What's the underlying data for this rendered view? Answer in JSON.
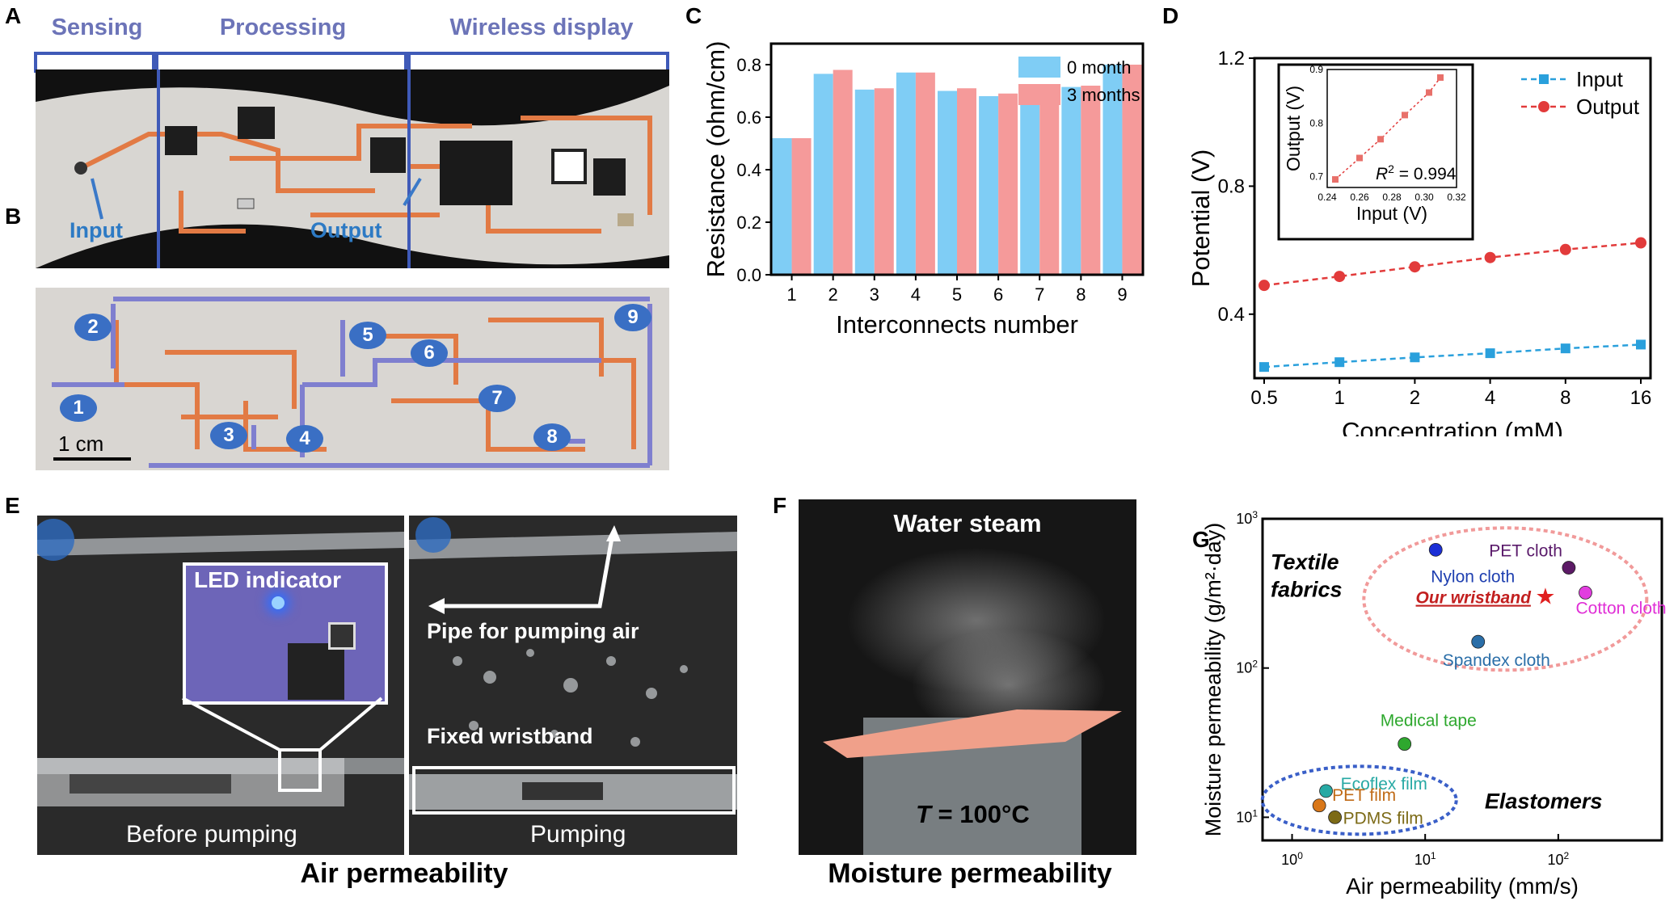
{
  "panels": {
    "A": "A",
    "B": "B",
    "C": "C",
    "D": "D",
    "E": "E",
    "F": "F",
    "G": "G"
  },
  "panelA": {
    "sections": [
      "Sensing",
      "Processing",
      "Wireless display"
    ],
    "labels": {
      "input": "Input",
      "output": "Output"
    }
  },
  "panelB": {
    "numbers": [
      "1",
      "2",
      "3",
      "4",
      "5",
      "6",
      "7",
      "8",
      "9"
    ],
    "scalebar": "1 cm"
  },
  "panelE": {
    "led": "LED indicator",
    "pipe": "Pipe for pumping air",
    "fixed": "Fixed wristband",
    "before": "Before pumping",
    "pumping": "Pumping",
    "caption": "Air permeability"
  },
  "panelF": {
    "steam": "Water steam",
    "temp_var": "T",
    "temp_val": " = 100°C",
    "caption": "Moisture permeability"
  },
  "chart_data": [
    {
      "panel": "C",
      "type": "bar",
      "categories": [
        "1",
        "2",
        "3",
        "4",
        "5",
        "6",
        "7",
        "8",
        "9"
      ],
      "series": [
        {
          "name": "0 month",
          "color": "#7fcdf5",
          "values": [
            0.52,
            0.765,
            0.705,
            0.77,
            0.7,
            0.68,
            0.665,
            0.715,
            0.8
          ]
        },
        {
          "name": "3 months",
          "color": "#f59a9a",
          "values": [
            0.52,
            0.78,
            0.71,
            0.77,
            0.71,
            0.69,
            0.67,
            0.72,
            0.8
          ]
        }
      ],
      "xlabel": "Interconnects number",
      "ylabel": "Resistance (ohm/cm)",
      "ylim": [
        0,
        0.88
      ],
      "yticks": [
        "0.0",
        "0.2",
        "0.4",
        "0.6",
        "0.8"
      ],
      "legend": "top-right"
    },
    {
      "panel": "D",
      "type": "line",
      "x": [
        "0.5",
        "1",
        "2",
        "4",
        "8",
        "16"
      ],
      "series": [
        {
          "name": "Input",
          "color": "#2aa0dc",
          "values": [
            0.235,
            0.25,
            0.265,
            0.278,
            0.293,
            0.305
          ]
        },
        {
          "name": "Output",
          "color": "#e23b3b",
          "values": [
            0.49,
            0.518,
            0.548,
            0.577,
            0.602,
            0.623
          ]
        }
      ],
      "xlabel": "Concentration (mM)",
      "ylabel": "Potential (V)",
      "ylim": [
        0.2,
        1.2
      ],
      "yticks": [
        "0.4",
        "0.8",
        "1.2"
      ],
      "legend": "top-right",
      "inset": {
        "type": "scatter",
        "xlabel": "Input (V)",
        "ylabel": "Output (V)",
        "xticks": [
          "0.24",
          "0.26",
          "0.28",
          "0.30",
          "0.32"
        ],
        "yticks": [
          "0.7",
          "0.8",
          "0.9"
        ],
        "xlim": [
          0.24,
          0.32
        ],
        "ylim": [
          0.68,
          0.9
        ],
        "x": [
          0.245,
          0.26,
          0.273,
          0.288,
          0.303,
          0.31
        ],
        "y": [
          0.695,
          0.735,
          0.77,
          0.815,
          0.857,
          0.885
        ],
        "annotation_var": "R",
        "annotation_sup": "2",
        "annotation_val": " = 0.994"
      }
    },
    {
      "panel": "G",
      "type": "scatter",
      "xlabel": "Air permeability (mm/s)",
      "ylabel": "Moisture permeability (g/m²·day)",
      "xscale": "log",
      "yscale": "log",
      "xlim": [
        0.6,
        600
      ],
      "ylim": [
        7,
        1000
      ],
      "xticks": [
        {
          "base": "10",
          "exp": "0",
          "v": 1
        },
        {
          "base": "10",
          "exp": "1",
          "v": 10
        },
        {
          "base": "10",
          "exp": "2",
          "v": 100
        }
      ],
      "yticks": [
        {
          "base": "10",
          "exp": "1",
          "v": 10
        },
        {
          "base": "10",
          "exp": "2",
          "v": 100
        },
        {
          "base": "10",
          "exp": "3",
          "v": 1000
        }
      ],
      "points": [
        {
          "name": "Nylon cloth",
          "x": 12,
          "y": 620,
          "color": "#1c2fd6",
          "lcolor": "#1e3fb0"
        },
        {
          "name": "PET cloth",
          "x": 120,
          "y": 470,
          "color": "#5c1a66",
          "lcolor": "#5a1a6a"
        },
        {
          "name": "Cotton cloth",
          "x": 160,
          "y": 320,
          "color": "#e23ddf",
          "lcolor": "#e02fd6"
        },
        {
          "name": "Spandex cloth",
          "x": 25,
          "y": 150,
          "color": "#2a6ea8",
          "lcolor": "#2a6ea8"
        },
        {
          "name": "Medical tape",
          "x": 7,
          "y": 31,
          "color": "#2ea82e",
          "lcolor": "#2ea82e"
        },
        {
          "name": "Ecoflex film",
          "x": 1.8,
          "y": 15,
          "color": "#27a9a4",
          "lcolor": "#27a9a4"
        },
        {
          "name": "PET film",
          "x": 1.6,
          "y": 12,
          "color": "#d97718",
          "lcolor": "#c06a16"
        },
        {
          "name": "PDMS film",
          "x": 2.1,
          "y": 10,
          "color": "#7c6a16",
          "lcolor": "#7c6a16"
        }
      ],
      "star": {
        "name": "Our wristband",
        "x": 80,
        "y": 300,
        "color": "#e02020"
      },
      "groups": {
        "textile1": "Textile",
        "textile2": "fabrics",
        "elastomers": "Elastomers"
      }
    }
  ]
}
